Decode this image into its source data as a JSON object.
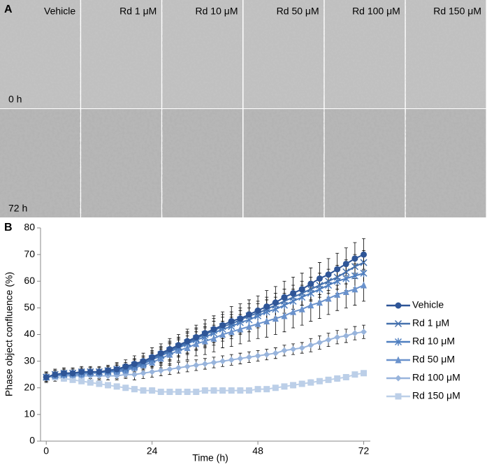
{
  "panel_a": {
    "label": "A",
    "columns": [
      "Vehicle",
      "Rd 1 μM",
      "Rd 10 μM",
      "Rd 50 μM",
      "Rd 100 μM",
      "Rd 150 μM"
    ],
    "rows": [
      "0 h",
      "72 h"
    ]
  },
  "chart_data": {
    "type": "line",
    "panel_label": "B",
    "x_label": "Time (h)",
    "y_label": "Phase object confluence (%)",
    "x": [
      0,
      2,
      4,
      6,
      8,
      10,
      12,
      14,
      16,
      18,
      20,
      22,
      24,
      26,
      28,
      30,
      32,
      34,
      36,
      38,
      40,
      42,
      44,
      46,
      48,
      50,
      52,
      54,
      56,
      58,
      60,
      62,
      64,
      66,
      68,
      70,
      72
    ],
    "xlim": [
      -1.3,
      73.5
    ],
    "xticks": [
      0,
      24,
      48,
      72
    ],
    "ylim": [
      0,
      80
    ],
    "yticks": [
      0,
      10,
      20,
      30,
      40,
      50,
      60,
      70,
      80
    ],
    "grid": false,
    "legend": "right",
    "series": [
      {
        "name": "Vehicle",
        "color": "#2e5597",
        "marker": "circle",
        "values": [
          24,
          25,
          25.5,
          25.5,
          26,
          26,
          26,
          26.5,
          27,
          28,
          29,
          30,
          31.5,
          33,
          34.5,
          36,
          37.5,
          39,
          40.5,
          42,
          43.5,
          45,
          46,
          47.5,
          49,
          50.5,
          52,
          54,
          55.5,
          57,
          59,
          61,
          62.5,
          64.5,
          66.5,
          68.5,
          70
        ],
        "errors": [
          2,
          2,
          2,
          2,
          2,
          2,
          2,
          2,
          2.5,
          2.5,
          3,
          3,
          3.5,
          3.5,
          4,
          4,
          4.5,
          4.5,
          5,
          5,
          5,
          5.5,
          5.5,
          5.5,
          5.5,
          6,
          6,
          6,
          6,
          6,
          6,
          6,
          6,
          6,
          6,
          6,
          6
        ]
      },
      {
        "name": "Rd 1 μM",
        "color": "#4470ad",
        "marker": "x",
        "values": [
          24,
          25,
          25.5,
          25.5,
          26,
          26,
          26,
          26.5,
          27,
          27.5,
          28.5,
          29.5,
          31,
          32.5,
          34,
          35.5,
          37,
          38.5,
          40,
          41.5,
          43,
          44,
          45.5,
          47,
          48,
          49.5,
          51,
          52.5,
          54,
          55.5,
          57,
          58.5,
          60,
          61.5,
          63.5,
          65.5,
          67
        ],
        "errors": [
          1.5,
          1.5,
          1.5,
          1.5,
          1.5,
          1.5,
          1.5,
          1.5,
          2,
          2,
          2.5,
          2.5,
          3,
          3,
          3.5,
          3.5,
          4,
          4,
          4,
          4.5,
          4.5,
          4.5,
          4.5,
          4.5,
          4.5,
          4.5,
          4.5,
          4.5,
          4.5,
          4.5,
          4.5,
          4.5,
          4.5,
          4.5,
          4.5,
          4.5,
          4.5
        ]
      },
      {
        "name": "Rd 10 μM",
        "color": "#4f7fc0",
        "marker": "asterisk",
        "values": [
          24,
          25,
          25,
          25.5,
          25.5,
          26,
          26,
          26,
          26.5,
          27,
          28,
          29,
          30.5,
          32,
          33.5,
          35,
          36.5,
          38,
          39,
          40.5,
          42,
          43,
          44.5,
          45.5,
          47,
          48.5,
          49.5,
          51,
          52.5,
          54,
          55.5,
          57,
          58.5,
          60,
          61,
          62,
          63
        ],
        "errors": [
          1.5,
          1.5,
          1.5,
          1.5,
          1.5,
          1.5,
          1.5,
          1.5,
          2,
          2,
          2.5,
          2.5,
          3,
          3,
          3.5,
          3.5,
          4,
          4,
          4,
          4.5,
          4.5,
          4.5,
          4.5,
          4.5,
          4.5,
          4.5,
          4.5,
          4.5,
          4.5,
          4.5,
          4.5,
          4.5,
          4.5,
          4.5,
          4.5,
          4.5,
          4.5
        ]
      },
      {
        "name": "Rd 50 μM",
        "color": "#6a92cc",
        "marker": "triangle",
        "values": [
          24,
          24.5,
          25,
          25,
          25,
          25.5,
          25.5,
          26,
          26,
          26.5,
          27.5,
          28.5,
          29.5,
          31,
          32.5,
          34,
          35,
          36.5,
          37.5,
          38.5,
          40,
          41,
          42,
          43,
          44,
          45,
          46,
          47,
          48.5,
          49.5,
          51,
          52,
          53.5,
          55,
          56,
          57,
          58.5
        ],
        "errors": [
          2,
          2,
          2,
          2,
          2,
          2,
          2,
          2,
          2.5,
          2.5,
          3,
          3,
          3.5,
          3.5,
          4,
          4,
          4.5,
          4.5,
          5,
          5,
          5,
          5.5,
          5.5,
          5.5,
          5.5,
          6,
          6,
          6,
          6,
          6,
          6,
          6,
          6,
          6,
          6,
          6,
          6
        ]
      },
      {
        "name": "Rd 100 μM",
        "color": "#98b4dc",
        "marker": "diamond",
        "values": [
          24,
          24.5,
          24.5,
          24.5,
          24.5,
          24.5,
          24.5,
          24.5,
          24.5,
          25,
          25,
          25.5,
          26,
          26.5,
          27,
          27.5,
          28,
          28.5,
          29,
          29.5,
          30,
          30.5,
          31,
          31.5,
          32,
          32.5,
          33,
          34,
          34.5,
          35,
          36,
          37,
          38,
          39,
          39.5,
          40.5,
          41
        ],
        "errors": [
          1.5,
          1.5,
          1.5,
          1.5,
          1.5,
          1.5,
          1.5,
          1.5,
          1.5,
          1.5,
          2,
          2,
          2,
          2,
          2,
          2,
          2,
          2,
          2,
          2,
          2,
          2,
          2,
          2,
          2,
          2,
          2,
          2,
          2,
          2,
          2.5,
          2.5,
          2.5,
          2.5,
          2.5,
          2.5,
          2.5
        ]
      },
      {
        "name": "Rd 150 μM",
        "color": "#bccfe8",
        "marker": "square",
        "values": [
          24,
          24,
          23.5,
          23,
          22.5,
          22,
          21.5,
          21,
          20.5,
          20,
          19.5,
          19,
          19,
          18.5,
          18.5,
          18.5,
          18.5,
          18.5,
          19,
          19,
          19,
          19,
          19,
          19,
          19.5,
          19.5,
          20,
          20.5,
          21,
          21.5,
          22,
          22.5,
          23,
          23.5,
          24,
          25,
          25.5
        ],
        "errors": [
          1,
          1,
          1,
          1,
          1,
          1,
          1,
          1,
          1,
          1,
          1,
          1,
          1,
          1,
          1,
          1,
          1,
          1,
          1,
          1,
          1,
          1,
          1,
          1,
          1,
          1,
          1,
          1,
          1,
          1,
          1,
          1,
          1,
          1,
          1,
          1,
          1
        ]
      }
    ]
  }
}
